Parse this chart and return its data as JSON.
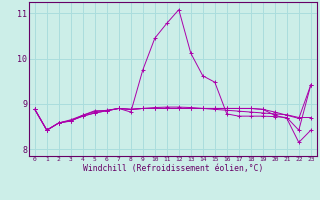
{
  "xlabel": "Windchill (Refroidissement éolien,°C)",
  "bg_color": "#cceee8",
  "grid_color": "#aadddd",
  "line_color": "#aa00aa",
  "xlim": [
    -0.5,
    23.5
  ],
  "ylim": [
    7.85,
    11.25
  ],
  "yticks": [
    8,
    9,
    10,
    11
  ],
  "xticks": [
    0,
    1,
    2,
    3,
    4,
    5,
    6,
    7,
    8,
    9,
    10,
    11,
    12,
    13,
    14,
    15,
    16,
    17,
    18,
    19,
    20,
    21,
    22,
    23
  ],
  "series1": [
    8.88,
    8.42,
    8.58,
    8.62,
    8.75,
    8.85,
    8.85,
    8.9,
    8.82,
    9.75,
    10.45,
    10.78,
    11.08,
    10.12,
    9.62,
    9.48,
    8.78,
    8.73,
    8.73,
    8.73,
    8.72,
    8.7,
    8.42,
    9.42
  ],
  "series2": [
    8.88,
    8.42,
    8.58,
    8.65,
    8.75,
    8.83,
    8.86,
    8.9,
    8.88,
    8.9,
    8.92,
    8.93,
    8.93,
    8.92,
    8.9,
    8.88,
    8.86,
    8.84,
    8.82,
    8.8,
    8.78,
    8.76,
    8.7,
    8.7
  ],
  "series3": [
    8.88,
    8.42,
    8.58,
    8.63,
    8.73,
    8.8,
    8.85,
    8.9,
    8.88,
    8.9,
    8.9,
    8.9,
    8.9,
    8.9,
    8.9,
    8.9,
    8.9,
    8.9,
    8.9,
    8.88,
    8.82,
    8.75,
    8.68,
    9.42
  ],
  "series4": [
    8.88,
    8.42,
    8.58,
    8.63,
    8.73,
    8.8,
    8.85,
    8.9,
    8.88,
    8.9,
    8.9,
    8.9,
    8.9,
    8.9,
    8.9,
    8.9,
    8.9,
    8.9,
    8.9,
    8.88,
    8.75,
    8.68,
    8.15,
    8.42
  ]
}
